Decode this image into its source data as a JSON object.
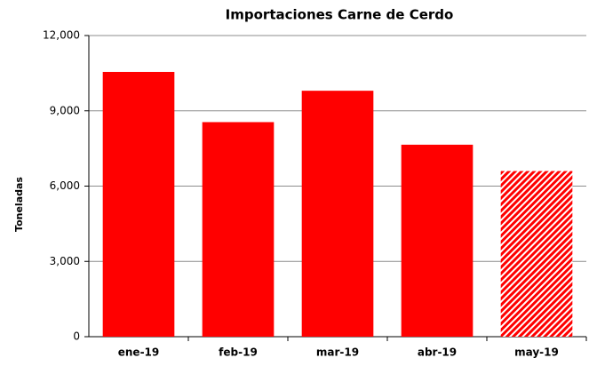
{
  "chart_data": {
    "type": "bar",
    "title": "Importaciones Carne de Cerdo",
    "y_label": "Toneladas",
    "categories": [
      "ene-19",
      "feb-19",
      "mar-19",
      "abr-19",
      "may-19"
    ],
    "values": [
      10550,
      8550,
      9800,
      7650,
      6600
    ],
    "hatch": [
      false,
      false,
      false,
      false,
      true
    ],
    "color": "#ff0000",
    "ylim": [
      0,
      12000
    ],
    "yticks": [
      0,
      {
        "value": 3000,
        "label": "3,000"
      },
      {
        "value": 6000,
        "label": "6,000"
      },
      {
        "value": 9000,
        "label": "9,000"
      },
      {
        "value": 12000,
        "label": "12,000"
      }
    ],
    "grid": true
  }
}
